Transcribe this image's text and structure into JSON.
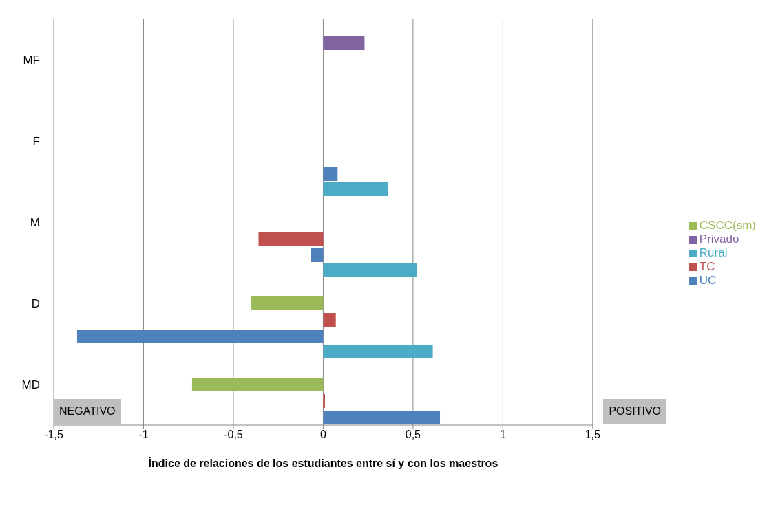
{
  "chart_data": {
    "type": "bar",
    "orientation": "horizontal",
    "categories": [
      "MF",
      "F",
      "M",
      "D",
      "MD"
    ],
    "series": [
      {
        "name": "Rural",
        "color": "#4bacc6",
        "values": [
          null,
          null,
          0.36,
          0.52,
          0.61
        ]
      },
      {
        "name": "Privado",
        "color": "#8064a2",
        "values": [
          0.23,
          null,
          null,
          null,
          null
        ]
      },
      {
        "name": "CSCC(sm)",
        "color": "#9bbb59",
        "values": [
          null,
          null,
          null,
          -0.4,
          -0.73
        ]
      },
      {
        "name": "TC",
        "color": "#c0504d",
        "values": [
          null,
          null,
          -0.36,
          0.07,
          0.01
        ]
      },
      {
        "name": "UC",
        "color": "#4f81bd",
        "values": [
          null,
          0.08,
          -0.07,
          -1.37,
          0.65
        ]
      }
    ],
    "xlim": [
      -1.5,
      1.5
    ],
    "xticks": [
      {
        "value": -1.5,
        "label": "-1,5"
      },
      {
        "value": -1,
        "label": "-1"
      },
      {
        "value": -0.5,
        "label": "-0,5"
      },
      {
        "value": 0,
        "label": "0"
      },
      {
        "value": 0.5,
        "label": "0,5"
      },
      {
        "value": 1,
        "label": "1"
      },
      {
        "value": 1.5,
        "label": "1,5"
      }
    ],
    "xlabel": "Índice de relaciones de los estudiantes entre sí y con los maestros",
    "annotations": [
      "NEGATIVO",
      "POSITIVO"
    ],
    "grid": "x",
    "legend": "right"
  }
}
